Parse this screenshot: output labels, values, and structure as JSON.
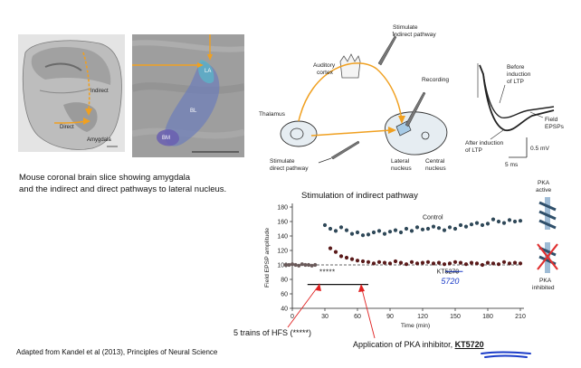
{
  "left_panel": {
    "caption_line1": "Mouse coronal brain slice showing amygdala",
    "caption_line2": "and the indirect and direct pathways to lateral nucleus.",
    "slice_labels": {
      "indirect": "Indirect",
      "direct": "Direct",
      "amygdala": "Amygdala"
    },
    "histology_labels": {
      "la": "LA",
      "bl": "BL",
      "bm": "BM"
    }
  },
  "footer": {
    "source": "Adapted from Kandel et al (2013), Principles of Neural Science"
  },
  "circuit": {
    "stimulate_indirect": [
      "Stimulate",
      "indirect pathway"
    ],
    "auditory_cortex": [
      "Auditory",
      "cortex"
    ],
    "recording": "Recording",
    "thalamus": "Thalamus",
    "stimulate_direct": [
      "Stimulate",
      "direct pathway"
    ],
    "lateral_nucleus": [
      "Lateral",
      "nucleus"
    ],
    "central_nucleus": [
      "Central",
      "nucleus"
    ]
  },
  "epsp": {
    "before": [
      "Before",
      "induction",
      "of LTP"
    ],
    "field": [
      "Field",
      "EPSPs"
    ],
    "after": [
      "After induction",
      "of LTP"
    ],
    "scale_mv": "0.5 mV",
    "scale_ms": "5 ms"
  },
  "chart_data": {
    "type": "scatter",
    "title": "Stimulation of indirect pathway",
    "xlabel": "Time (min)",
    "ylabel": "Field EPSP amplitude",
    "xlim": [
      0,
      210
    ],
    "ylim": [
      40,
      180
    ],
    "xticks": [
      0,
      30,
      60,
      90,
      120,
      150,
      180,
      210
    ],
    "yticks": [
      40,
      60,
      80,
      100,
      120,
      140,
      160,
      180
    ],
    "baseline": 100,
    "series": [
      {
        "name": "Control",
        "color": "#2f4858",
        "x": [
          30,
          35,
          40,
          45,
          50,
          55,
          60,
          65,
          70,
          75,
          80,
          85,
          90,
          95,
          100,
          105,
          110,
          115,
          120,
          125,
          130,
          135,
          140,
          145,
          150,
          155,
          160,
          165,
          170,
          175,
          180,
          185,
          190,
          195,
          200,
          205,
          210
        ],
        "y": [
          155,
          150,
          147,
          152,
          148,
          143,
          145,
          141,
          142,
          145,
          147,
          143,
          146,
          148,
          145,
          150,
          147,
          152,
          149,
          150,
          153,
          151,
          148,
          152,
          150,
          155,
          153,
          156,
          158,
          155,
          157,
          163,
          160,
          158,
          162,
          160,
          161
        ]
      },
      {
        "name": "KT5720",
        "color": "#5a1a1a",
        "x": [
          35,
          40,
          45,
          50,
          55,
          60,
          65,
          70,
          75,
          80,
          85,
          90,
          95,
          100,
          105,
          110,
          115,
          120,
          125,
          130,
          135,
          140,
          145,
          150,
          155,
          160,
          165,
          170,
          175,
          180,
          185,
          190,
          195,
          200,
          205,
          210
        ],
        "y": [
          123,
          118,
          112,
          110,
          108,
          106,
          105,
          104,
          102,
          104,
          103,
          102,
          105,
          103,
          101,
          104,
          102,
          103,
          104,
          102,
          103,
          101,
          102,
          104,
          103,
          101,
          103,
          102,
          100,
          103,
          102,
          101,
          104,
          102,
          103,
          102
        ]
      },
      {
        "name": "pre-HFS baseline",
        "color": "#6a5a5a",
        "x": [
          -6,
          -3,
          0,
          3,
          6,
          9,
          12,
          15,
          18,
          21
        ],
        "y": [
          100,
          100,
          101,
          100,
          99,
          101,
          100,
          100,
          99,
          100
        ]
      }
    ],
    "annotations": {
      "control_label": "Control",
      "kt_label_prefix": "KT",
      "kt_label_struck": "5270",
      "kt_handwritten": "5720",
      "hfs_marks": "*****",
      "pka_active": [
        "PKA",
        "active"
      ],
      "pka_inhibited": [
        "PKA",
        "inhibited"
      ],
      "hfs_callout": "5 trains of HFS (*****)",
      "inhibitor_callout_prefix": "Application of PKA inhibitor, ",
      "inhibitor_callout_name": "KT5720",
      "highlight_color": "#1b3cc8",
      "arrow_color": "#e02020"
    }
  }
}
